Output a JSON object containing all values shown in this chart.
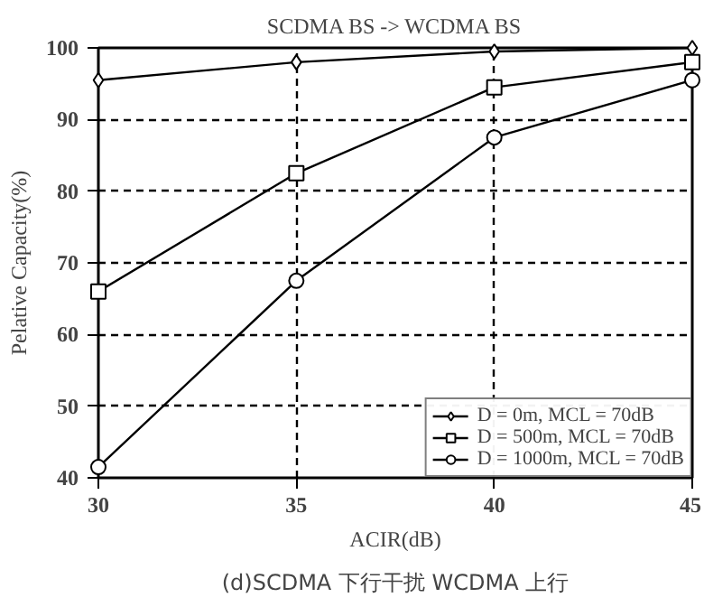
{
  "chart_data": {
    "type": "line",
    "title": "SCDMA BS -> WCDMA BS",
    "xlabel": "ACIR(dB)",
    "ylabel": "Pelative Capacity(%)",
    "x": [
      30,
      35,
      40,
      45
    ],
    "series": [
      {
        "name": "D = 0m, MCL = 70dB",
        "color": "#000000",
        "marker": "diamond",
        "values": [
          95.5,
          98,
          99.5,
          100
        ]
      },
      {
        "name": "D = 500m, MCL = 70dB",
        "color": "#000000",
        "marker": "square",
        "values": [
          66,
          82.5,
          94.5,
          98
        ]
      },
      {
        "name": "D = 1000m, MCL = 70dB",
        "color": "#000000",
        "marker": "circle",
        "values": [
          41.5,
          67.5,
          87.5,
          95.5
        ]
      }
    ],
    "xlim": [
      30,
      45
    ],
    "ylim": [
      40,
      100
    ],
    "xticks": [
      30,
      35,
      40,
      45
    ],
    "yticks": [
      40,
      50,
      60,
      70,
      80,
      90,
      100
    ],
    "grid": true,
    "legend": "bottom right",
    "line_style": "solid",
    "annotations": [
      "(d)SCDMA 下行干扰 WCDMA 上行"
    ]
  }
}
